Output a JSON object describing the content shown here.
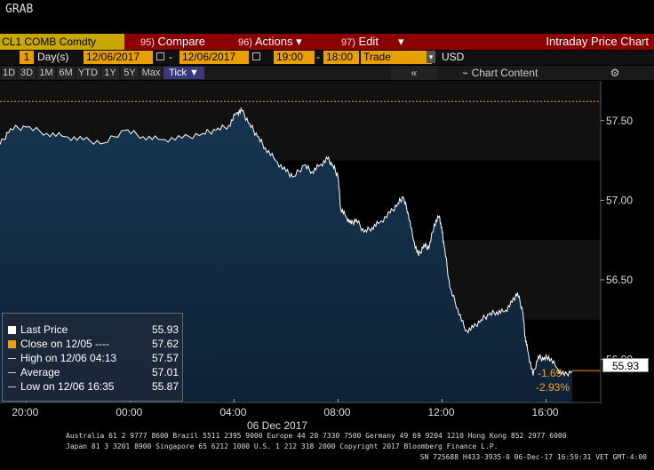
{
  "window_title": "GRAB",
  "commandbar": {
    "ticker": "CL1 COMB Comdty",
    "compare_num": "95)",
    "compare": "Compare",
    "actions_num": "96)",
    "actions": "Actions",
    "edit_num": "97)",
    "edit": "Edit",
    "dropdown_glyph": "▾",
    "title": "Intraday Price Chart"
  },
  "datebar": {
    "days_value": "1",
    "days_unit": "Day(s)",
    "start_date": "12/06/2017",
    "dash": "-",
    "end_date": "12/06/2017",
    "start_time": "19:00",
    "end_time": "18:00",
    "mode": "Trade",
    "currency": "USD"
  },
  "periodbar": {
    "buttons": [
      "1D",
      "3D",
      "1M",
      "6M",
      "YTD",
      "1Y",
      "5Y",
      "Max",
      "Tick ▼"
    ],
    "nav_glyph": "«",
    "chart_content": "Chart Content",
    "gear_glyph": "⚙"
  },
  "legend": {
    "last_price_label": "Last Price",
    "last_price_value": "55.93",
    "close_label": "Close on 12/05 ----",
    "close_value": "57.62",
    "high_label": "High on 12/06 04:13",
    "high_value": "57.57",
    "average_label": "Average",
    "average_value": "57.01",
    "low_label": "Low on 12/06 16:35",
    "low_value": "55.87"
  },
  "last_tag": "55.93",
  "change_abs": "-1.69",
  "change_pct": "-2.93%",
  "x_date_label": "06 Dec 2017",
  "footer": {
    "line1": "Australia 61 2 9777 8600 Brazil 5511 2395 9000 Europe 44 20 7330 7500 Germany 49 69 9204 1210 Hong Kong 852 2977 6000",
    "line2": "Japan 81 3 3201 8900       Singapore 65 6212 1000       U.S. 1 212 318 2000             Copyright 2017 Bloomberg Finance L.P.",
    "line3": "SN 725688 H433-3935-0 06-Dec-17 16:59:31 VET  GMT-4:00"
  },
  "colors": {
    "area_fill": "#12304a",
    "area_fill_bottom": "#0f2438",
    "price_line": "#ffffff",
    "close_line": "#f0a000",
    "background": "#000000",
    "band": "#111111"
  },
  "chart_data": {
    "type": "area",
    "title": "Intraday Price Chart",
    "xlabel": "06 Dec 2017",
    "ylabel": "",
    "x_tick_labels": [
      "20:00",
      "00:00",
      "04:00",
      "08:00",
      "12:00",
      "16:00"
    ],
    "x_tick_hours": [
      20,
      24,
      28,
      32,
      36,
      40
    ],
    "xlim_hours": [
      19,
      42.1
    ],
    "y_tick_labels": [
      "57.50",
      "57.00",
      "56.50",
      "56.00"
    ],
    "y_ticks": [
      57.5,
      57.0,
      56.5,
      56.0
    ],
    "ylim": [
      55.73,
      57.75
    ],
    "close_reference": 57.62,
    "series": [
      {
        "name": "Last Price",
        "x_hours": [
          19.0,
          19.4,
          20.0,
          20.8,
          21.5,
          22.2,
          23.0,
          23.8,
          24.5,
          25.2,
          26.0,
          26.8,
          27.3,
          27.8,
          28.1,
          28.3,
          28.6,
          28.9,
          29.2,
          29.6,
          30.0,
          30.3,
          30.7,
          31.0,
          31.3,
          31.6,
          31.8,
          32.0,
          32.1,
          32.3,
          32.5,
          32.7,
          33.0,
          33.3,
          33.6,
          34.0,
          34.3,
          34.5,
          34.7,
          34.9,
          35.1,
          35.3,
          35.5,
          35.7,
          35.9,
          36.0,
          36.1,
          36.3,
          36.6,
          36.9,
          37.2,
          37.5,
          37.8,
          38.1,
          38.4,
          38.7,
          38.9,
          39.1,
          39.2,
          39.3,
          39.5,
          39.7,
          39.9,
          40.1,
          40.4,
          40.7,
          41.0
        ],
        "values": [
          57.35,
          57.45,
          57.46,
          57.42,
          57.4,
          57.38,
          57.36,
          57.44,
          57.4,
          57.38,
          57.39,
          57.42,
          57.44,
          57.47,
          57.55,
          57.56,
          57.48,
          57.4,
          57.33,
          57.25,
          57.18,
          57.15,
          57.22,
          57.18,
          57.22,
          57.26,
          57.22,
          57.15,
          56.95,
          56.9,
          56.85,
          56.88,
          56.8,
          56.83,
          56.86,
          56.92,
          56.98,
          57.02,
          56.92,
          56.75,
          56.65,
          56.72,
          56.7,
          56.85,
          56.9,
          56.8,
          56.7,
          56.45,
          56.32,
          56.18,
          56.2,
          56.25,
          56.28,
          56.3,
          56.3,
          56.36,
          56.42,
          56.3,
          56.14,
          56.05,
          55.9,
          56.02,
          56.0,
          56.02,
          55.95,
          55.9,
          55.93
        ]
      }
    ],
    "grid": false,
    "legend_position": "bottom-left"
  }
}
